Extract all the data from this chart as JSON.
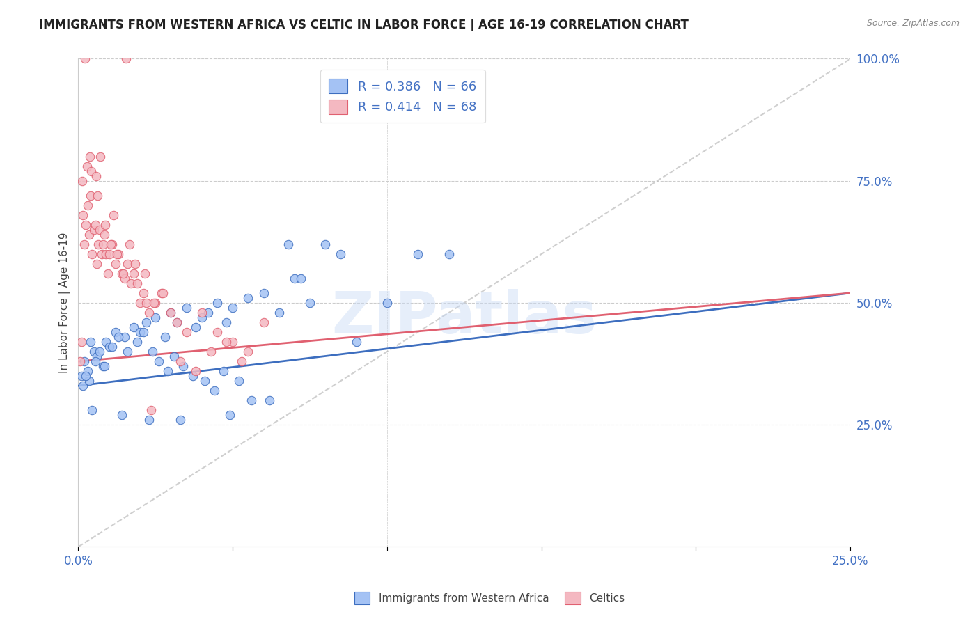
{
  "title": "IMMIGRANTS FROM WESTERN AFRICA VS CELTIC IN LABOR FORCE | AGE 16-19 CORRELATION CHART",
  "source": "Source: ZipAtlas.com",
  "ylabel": "In Labor Force | Age 16-19",
  "xlim": [
    0,
    25
  ],
  "ylim": [
    0,
    100
  ],
  "blue_color": "#a4c2f4",
  "pink_color": "#f4b8c1",
  "blue_line_color": "#3d6ebf",
  "pink_line_color": "#e06070",
  "legend_blue_label": "R = 0.386   N = 66",
  "legend_pink_label": "R = 0.414   N = 68",
  "legend_bottom_blue": "Immigrants from Western Africa",
  "legend_bottom_pink": "Celtics",
  "watermark": "ZIPatlas",
  "blue_scatter_x": [
    0.15,
    0.3,
    0.5,
    0.2,
    0.4,
    0.1,
    0.6,
    0.8,
    0.35,
    0.9,
    1.0,
    1.2,
    1.5,
    1.8,
    2.0,
    2.2,
    2.5,
    2.8,
    3.0,
    3.2,
    3.5,
    3.8,
    4.0,
    4.2,
    4.5,
    4.8,
    5.0,
    5.5,
    6.0,
    6.5,
    7.0,
    7.5,
    8.0,
    9.0,
    10.0,
    11.0,
    12.0,
    0.25,
    0.55,
    0.7,
    0.85,
    1.1,
    1.3,
    1.6,
    1.9,
    2.1,
    2.4,
    2.6,
    2.9,
    3.1,
    3.4,
    3.7,
    4.1,
    4.4,
    4.7,
    5.2,
    5.6,
    6.2,
    7.2,
    8.5,
    0.45,
    1.4,
    2.3,
    3.3,
    4.9,
    6.8
  ],
  "blue_scatter_y": [
    33,
    36,
    40,
    38,
    42,
    35,
    39,
    37,
    34,
    42,
    41,
    44,
    43,
    45,
    44,
    46,
    47,
    43,
    48,
    46,
    49,
    45,
    47,
    48,
    50,
    46,
    49,
    51,
    52,
    48,
    55,
    50,
    62,
    42,
    50,
    60,
    60,
    35,
    38,
    40,
    37,
    41,
    43,
    40,
    42,
    44,
    40,
    38,
    36,
    39,
    37,
    35,
    34,
    32,
    36,
    34,
    30,
    30,
    55,
    60,
    28,
    27,
    26,
    26,
    27,
    62
  ],
  "pink_scatter_x": [
    0.05,
    0.1,
    0.15,
    0.2,
    0.25,
    0.3,
    0.35,
    0.4,
    0.45,
    0.5,
    0.55,
    0.6,
    0.65,
    0.7,
    0.75,
    0.8,
    0.85,
    0.9,
    0.95,
    1.0,
    1.1,
    1.2,
    1.3,
    1.4,
    1.5,
    1.6,
    1.7,
    1.8,
    1.9,
    2.0,
    2.1,
    2.2,
    2.3,
    2.5,
    2.7,
    3.0,
    3.2,
    3.5,
    4.0,
    4.5,
    5.0,
    5.5,
    6.0,
    0.12,
    0.28,
    0.42,
    0.58,
    0.72,
    0.88,
    1.05,
    1.25,
    1.45,
    1.65,
    1.85,
    2.15,
    2.45,
    2.75,
    3.3,
    3.8,
    4.3,
    4.8,
    5.3,
    0.38,
    1.15,
    2.35,
    0.62,
    0.22,
    1.55
  ],
  "pink_scatter_y": [
    38,
    42,
    68,
    62,
    66,
    70,
    64,
    72,
    60,
    65,
    66,
    58,
    62,
    65,
    60,
    62,
    64,
    60,
    56,
    60,
    62,
    58,
    60,
    56,
    55,
    58,
    54,
    56,
    54,
    50,
    52,
    50,
    48,
    50,
    52,
    48,
    46,
    44,
    48,
    44,
    42,
    40,
    46,
    75,
    78,
    77,
    76,
    80,
    66,
    62,
    60,
    56,
    62,
    58,
    56,
    50,
    52,
    38,
    36,
    40,
    42,
    38,
    80,
    68,
    28,
    72,
    100,
    100
  ],
  "blue_trend_x": [
    0,
    25
  ],
  "blue_trend_y": [
    33,
    52
  ],
  "pink_trend_x": [
    0,
    25
  ],
  "pink_trend_y": [
    38,
    52
  ],
  "gray_trend_x": [
    0,
    25
  ],
  "gray_trend_y": [
    0,
    100
  ],
  "axis_label_color": "#4472c4",
  "background_color": "#ffffff"
}
